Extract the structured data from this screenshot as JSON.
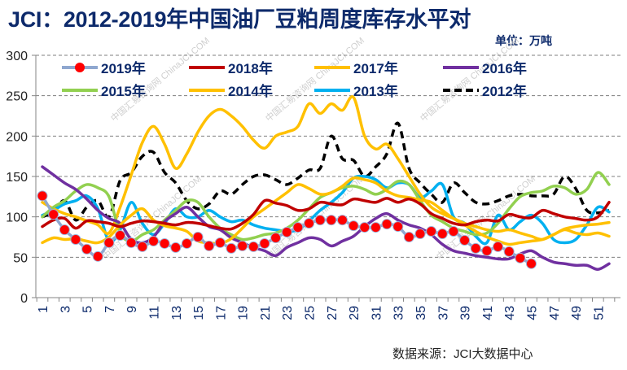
{
  "header": {
    "title": "JCI：2012-2019年中国油厂豆粕周度库存水平对",
    "unit": "单位：万吨"
  },
  "footer": {
    "source": "数据来源：JCI大数据中心"
  },
  "watermark": {
    "text_cn": "中国汇易咨询网",
    "text_en": "ChinaJCI.COM"
  },
  "chart_data": {
    "type": "line",
    "title": "JCI：2012-2019年中国油厂豆粕周度库存水平对",
    "xlabel": "",
    "ylabel": "单位：万吨",
    "ylim": [
      0,
      300
    ],
    "xlim": [
      1,
      52
    ],
    "yticks": [
      0,
      50,
      100,
      150,
      200,
      250,
      300
    ],
    "xticks": [
      1,
      3,
      5,
      7,
      9,
      11,
      13,
      15,
      17,
      19,
      21,
      23,
      25,
      27,
      29,
      31,
      33,
      35,
      37,
      39,
      41,
      43,
      45,
      47,
      49,
      51
    ],
    "grid": "horizontal-dashed",
    "legend_position": "top",
    "series": [
      {
        "name": "2019年",
        "color": "#ff0000",
        "line_color": "#8fa7cf",
        "style": "dot-marker",
        "values": [
          126,
          103,
          84,
          72,
          60,
          51,
          68,
          77,
          68,
          63,
          70,
          67,
          62,
          67,
          75,
          64,
          68,
          61,
          64,
          63,
          67,
          74,
          81,
          87,
          92,
          96,
          96,
          96,
          89,
          87,
          87,
          91,
          88,
          75,
          79,
          82,
          79,
          82,
          71,
          61,
          58,
          63,
          57,
          49,
          42
        ]
      },
      {
        "name": "2018年",
        "color": "#c00000",
        "style": "solid",
        "values": [
          88,
          96,
          98,
          86,
          95,
          94,
          92,
          88,
          92,
          95,
          94,
          92,
          90,
          93,
          92,
          89,
          86,
          85,
          92,
          103,
          120,
          117,
          114,
          108,
          110,
          118,
          116,
          115,
          122,
          120,
          118,
          123,
          118,
          122,
          116,
          104,
          98,
          92,
          90,
          94,
          96,
          95,
          103,
          100,
          99,
          108,
          104,
          100,
          98,
          96,
          100,
          118
        ]
      },
      {
        "name": "2017年",
        "color": "#ffc000",
        "style": "solid",
        "values": [
          68,
          74,
          72,
          73,
          70,
          68,
          75,
          90,
          102,
          110,
          96,
          89,
          86,
          82,
          70,
          68,
          67,
          73,
          86,
          100,
          110,
          120,
          130,
          140,
          135,
          128,
          130,
          138,
          148,
          146,
          142,
          132,
          126,
          124,
          121,
          118,
          108,
          98,
          90,
          82,
          75,
          70,
          66,
          68,
          70,
          72,
          78,
          85,
          88,
          90,
          91,
          93
        ]
      },
      {
        "name": "2016年",
        "color": "#7030a0",
        "style": "solid",
        "values": [
          162,
          152,
          142,
          134,
          122,
          108,
          98,
          92,
          72,
          68,
          75,
          94,
          104,
          112,
          100,
          88,
          84,
          74,
          68,
          62,
          58,
          52,
          62,
          68,
          74,
          72,
          64,
          70,
          76,
          88,
          98,
          104,
          96,
          90,
          86,
          78,
          66,
          58,
          55,
          52,
          50,
          48,
          48,
          54,
          58,
          50,
          44,
          42,
          40,
          40,
          35,
          42
        ]
      },
      {
        "name": "2015年",
        "color": "#92d050",
        "style": "solid",
        "values": [
          100,
          112,
          120,
          132,
          140,
          136,
          125,
          80,
          70,
          78,
          84,
          96,
          108,
          120,
          118,
          100,
          86,
          78,
          72,
          74,
          78,
          80,
          86,
          96,
          110,
          124,
          130,
          136,
          138,
          134,
          128,
          134,
          144,
          140,
          120,
          102,
          94,
          86,
          82,
          78,
          80,
          92,
          110,
          125,
          130,
          132,
          138,
          136,
          128,
          134,
          155,
          140
        ]
      },
      {
        "name": "2014年",
        "color": "#ffc000",
        "style": "solid",
        "values": [
          118,
          110,
          104,
          100,
          95,
          90,
          80,
          112,
          152,
          192,
          212,
          190,
          160,
          178,
          205,
          225,
          233,
          225,
          212,
          195,
          185,
          200,
          205,
          212,
          240,
          228,
          240,
          232,
          248,
          200,
          184,
          190,
          172,
          150,
          128,
          112,
          104,
          98,
          92,
          88,
          84,
          82,
          84,
          80,
          76,
          72,
          78,
          84,
          80,
          78,
          80,
          76
        ]
      },
      {
        "name": "2013年",
        "color": "#00b0f0",
        "style": "solid",
        "values": [
          102,
          108,
          116,
          120,
          126,
          110,
          70,
          84,
          118,
          92,
          78,
          92,
          110,
          100,
          100,
          108,
          100,
          94,
          96,
          90,
          86,
          84,
          82,
          84,
          95,
          108,
          118,
          130,
          148,
          150,
          146,
          136,
          142,
          140,
          124,
          132,
          140,
          100,
          92,
          76,
          68,
          102,
          84,
          94,
          102,
          92,
          72,
          68,
          72,
          90,
          112,
          106
        ]
      },
      {
        "name": "2012年",
        "color": "#000000",
        "style": "dashed",
        "values": [
          100,
          106,
          120,
          96,
          112,
          120,
          100,
          145,
          155,
          175,
          180,
          155,
          142,
          120,
          110,
          116,
          132,
          128,
          140,
          150,
          152,
          146,
          140,
          148,
          158,
          160,
          200,
          172,
          170,
          150,
          162,
          178,
          216,
          160,
          142,
          128,
          118,
          142,
          130,
          118,
          116,
          120,
          126,
          128,
          126,
          126,
          128,
          150,
          135,
          108,
          105,
          108
        ]
      }
    ]
  }
}
